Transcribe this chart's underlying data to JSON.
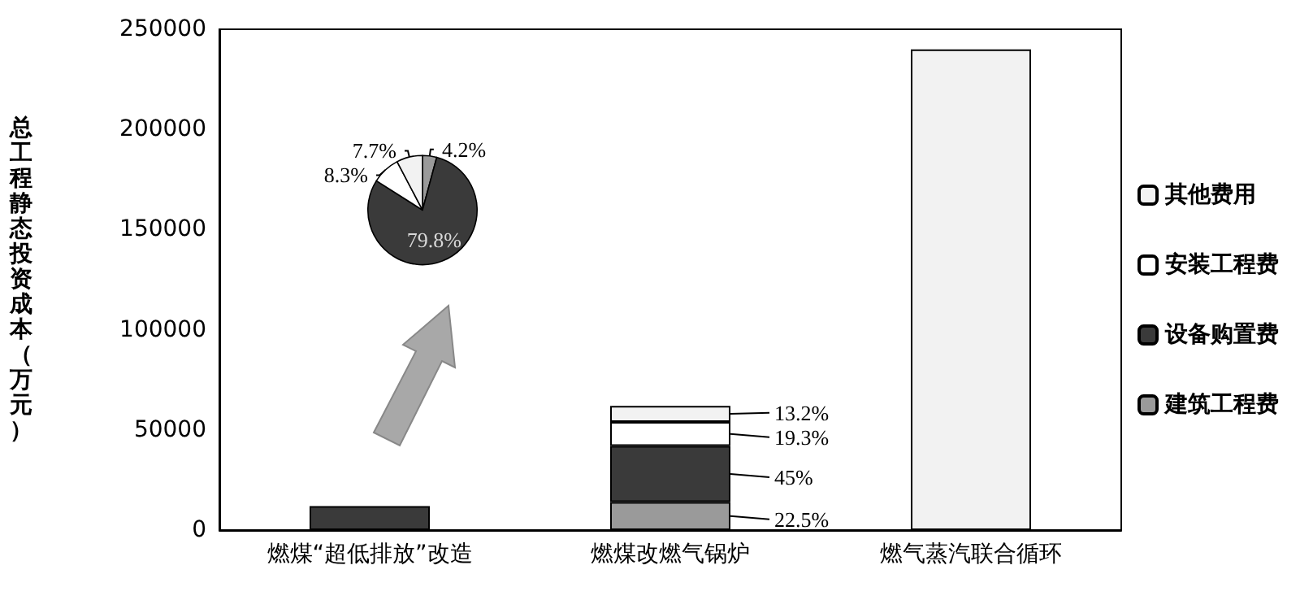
{
  "chart_data": [
    {
      "type": "bar",
      "stacked": true,
      "ylabel": "总工程静态投资成本（万元）",
      "categories": [
        "燃煤“超低排放”改造",
        "燃煤改燃气锅炉",
        "燃气蒸汽联合循环"
      ],
      "series": [
        {
          "name": "建筑工程费",
          "color": "#9a9a9a",
          "values": [
            null,
            14000,
            null
          ]
        },
        {
          "name": "设备购置费",
          "color": "#3a3a3a",
          "values": [
            12000,
            28000,
            null
          ]
        },
        {
          "name": "安装工程费",
          "color": "#ffffff",
          "values": [
            null,
            12000,
            null
          ]
        },
        {
          "name": "其他费用",
          "color": "#f2f2f2",
          "values": [
            null,
            8000,
            240000
          ]
        }
      ],
      "annotations": [
        "22.5%",
        "45%",
        "19.3%",
        "13.2%"
      ],
      "ylim": [
        0,
        250000
      ],
      "yticks": [
        0,
        50000,
        100000,
        150000,
        200000,
        250000
      ],
      "legend": "right"
    },
    {
      "type": "pie",
      "categories": [
        null,
        null,
        null,
        null
      ],
      "values": [
        4.2,
        79.8,
        8.3,
        7.7
      ],
      "value_labels": [
        "4.2%",
        "79.8%",
        "8.3%",
        "7.7%"
      ],
      "colors": [
        "#9a9a9a",
        "#3a3a3a",
        "#ffffff",
        "#f2f2f2"
      ]
    }
  ]
}
